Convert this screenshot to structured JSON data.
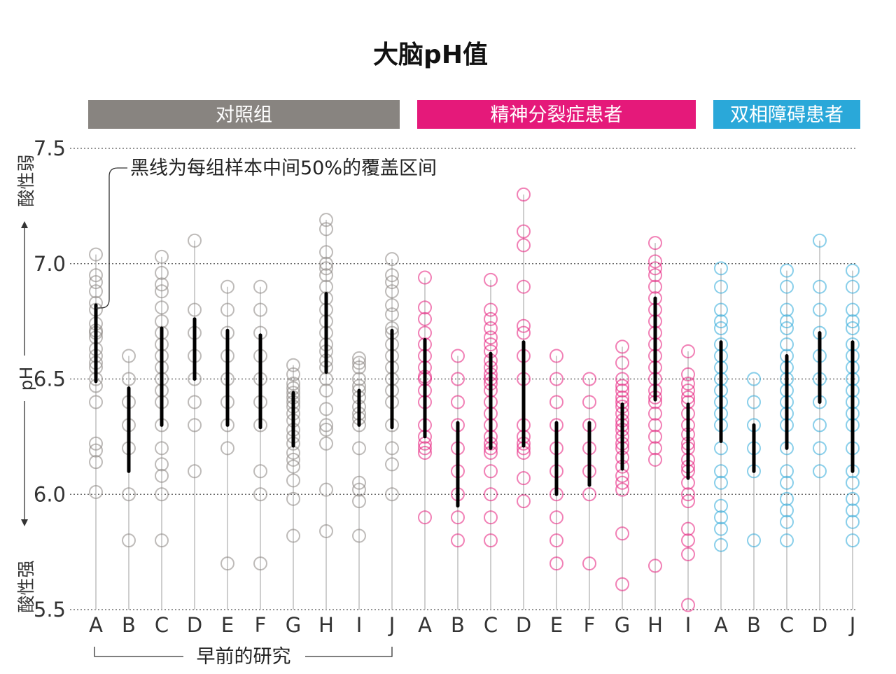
{
  "chart_data": {
    "type": "scatter",
    "title": "大脑pH值",
    "ylabel": "pH",
    "ylim": [
      5.5,
      7.5
    ],
    "y_ticks": [
      "7.5",
      "7.0",
      "6.5",
      "6.0",
      "5.5"
    ],
    "y_direction_labels": {
      "up": "酸性弱",
      "down": "酸性强"
    },
    "grid": true,
    "annotation": "黑线为每组样本中间50%的覆盖区间",
    "bracket_label": "早前的研究",
    "groups": [
      {
        "name": "对照组",
        "color": "#888480",
        "categories": [
          {
            "label": "A",
            "iqr": [
              6.49,
              6.82
            ],
            "points": [
              7.04,
              6.95,
              6.92,
              6.88,
              6.83,
              6.8,
              6.74,
              6.71,
              6.7,
              6.68,
              6.63,
              6.6,
              6.57,
              6.55,
              6.5,
              6.47,
              6.4,
              6.22,
              6.19,
              6.14,
              6.01
            ]
          },
          {
            "label": "B",
            "iqr": [
              6.1,
              6.46
            ],
            "points": [
              6.6,
              6.5,
              6.4,
              6.3,
              6.2,
              6.0,
              5.8
            ]
          },
          {
            "label": "C",
            "iqr": [
              6.3,
              6.72
            ],
            "points": [
              7.03,
              6.96,
              6.91,
              6.88,
              6.81,
              6.75,
              6.7,
              6.65,
              6.6,
              6.55,
              6.5,
              6.45,
              6.4,
              6.3,
              6.2,
              6.13,
              6.08,
              6.0,
              5.8
            ]
          },
          {
            "label": "D",
            "iqr": [
              6.5,
              6.76
            ],
            "points": [
              7.1,
              6.8,
              6.7,
              6.6,
              6.5,
              6.4,
              6.3,
              6.1
            ]
          },
          {
            "label": "E",
            "iqr": [
              6.3,
              6.71
            ],
            "points": [
              6.9,
              6.8,
              6.7,
              6.6,
              6.5,
              6.4,
              6.3,
              6.2,
              5.7
            ]
          },
          {
            "label": "F",
            "iqr": [
              6.29,
              6.69
            ],
            "points": [
              6.9,
              6.8,
              6.7,
              6.6,
              6.5,
              6.4,
              6.3,
              6.1,
              6.0,
              5.7
            ]
          },
          {
            "label": "G",
            "iqr": [
              6.21,
              6.44
            ],
            "points": [
              6.56,
              6.52,
              6.48,
              6.46,
              6.44,
              6.42,
              6.4,
              6.38,
              6.35,
              6.32,
              6.28,
              6.25,
              6.22,
              6.18,
              6.15,
              6.12,
              6.06,
              5.98,
              5.82
            ]
          },
          {
            "label": "H",
            "iqr": [
              6.53,
              6.87
            ],
            "points": [
              7.19,
              7.15,
              7.05,
              7.0,
              6.98,
              6.95,
              6.9,
              6.85,
              6.8,
              6.75,
              6.7,
              6.65,
              6.62,
              6.58,
              6.55,
              6.5,
              6.45,
              6.37,
              6.3,
              6.28,
              6.22,
              6.02,
              5.84
            ]
          },
          {
            "label": "I",
            "iqr": [
              6.3,
              6.45
            ],
            "points": [
              6.59,
              6.57,
              6.55,
              6.5,
              6.47,
              6.45,
              6.42,
              6.38,
              6.35,
              6.33,
              6.3,
              6.2,
              6.05,
              6.02,
              5.97,
              5.82
            ]
          },
          {
            "label": "J",
            "iqr": [
              6.29,
              6.71
            ],
            "points": [
              7.02,
              6.95,
              6.92,
              6.88,
              6.82,
              6.78,
              6.72,
              6.7,
              6.65,
              6.6,
              6.55,
              6.5,
              6.45,
              6.4,
              6.3,
              6.2,
              6.13,
              6.0
            ]
          }
        ]
      },
      {
        "name": "精神分裂症患者",
        "color": "#e5197a",
        "categories": [
          {
            "label": "A",
            "iqr": [
              6.25,
              6.67
            ],
            "points": [
              6.94,
              6.81,
              6.76,
              6.7,
              6.65,
              6.6,
              6.55,
              6.51,
              6.5,
              6.45,
              6.4,
              6.3,
              6.25,
              6.22,
              6.2,
              6.18,
              5.9
            ]
          },
          {
            "label": "B",
            "iqr": [
              5.95,
              6.31
            ],
            "points": [
              6.6,
              6.5,
              6.4,
              6.3,
              6.2,
              6.1,
              6.0,
              5.9,
              5.8
            ]
          },
          {
            "label": "C",
            "iqr": [
              6.2,
              6.61
            ],
            "points": [
              6.93,
              6.8,
              6.76,
              6.72,
              6.68,
              6.65,
              6.62,
              6.58,
              6.55,
              6.52,
              6.5,
              6.48,
              6.45,
              6.4,
              6.35,
              6.3,
              6.25,
              6.22,
              6.2,
              6.18,
              6.1,
              6.0,
              5.9,
              5.8
            ]
          },
          {
            "label": "D",
            "iqr": [
              6.21,
              6.66
            ],
            "points": [
              7.3,
              7.14,
              7.08,
              6.9,
              6.73,
              6.7,
              6.6,
              6.5,
              6.3,
              6.25,
              6.22,
              6.2,
              6.18,
              6.07,
              5.97
            ]
          },
          {
            "label": "E",
            "iqr": [
              6.0,
              6.31
            ],
            "points": [
              6.6,
              6.5,
              6.4,
              6.3,
              6.2,
              6.1,
              6.0,
              5.9,
              5.8,
              5.7
            ]
          },
          {
            "label": "F",
            "iqr": [
              6.04,
              6.31
            ],
            "points": [
              6.5,
              6.4,
              6.3,
              6.2,
              6.1,
              6.0,
              5.7
            ]
          },
          {
            "label": "G",
            "iqr": [
              6.11,
              6.39
            ],
            "points": [
              6.64,
              6.57,
              6.5,
              6.47,
              6.45,
              6.42,
              6.4,
              6.38,
              6.35,
              6.32,
              6.3,
              6.28,
              6.25,
              6.22,
              6.2,
              6.16,
              6.12,
              6.08,
              6.05,
              6.02,
              5.83,
              5.61
            ]
          },
          {
            "label": "H",
            "iqr": [
              6.41,
              6.85
            ],
            "points": [
              7.09,
              7.01,
              6.98,
              6.95,
              6.9,
              6.85,
              6.8,
              6.75,
              6.7,
              6.65,
              6.6,
              6.55,
              6.5,
              6.45,
              6.42,
              6.4,
              6.35,
              6.3,
              6.25,
              6.2,
              6.15,
              5.69
            ]
          },
          {
            "label": "I",
            "iqr": [
              6.07,
              6.39
            ],
            "points": [
              6.62,
              6.52,
              6.48,
              6.45,
              6.42,
              6.4,
              6.35,
              6.3,
              6.26,
              6.22,
              6.2,
              6.15,
              6.12,
              6.1,
              6.05,
              6.0,
              5.97,
              5.85,
              5.8,
              5.74,
              5.52
            ]
          }
        ]
      },
      {
        "name": "双相障碍患者",
        "color": "#2aa8d9",
        "categories": [
          {
            "label": "A",
            "iqr": [
              6.23,
              6.66
            ],
            "points": [
              6.98,
              6.9,
              6.8,
              6.75,
              6.72,
              6.65,
              6.6,
              6.55,
              6.5,
              6.45,
              6.4,
              6.35,
              6.3,
              6.2,
              6.1,
              6.05,
              5.95,
              5.9,
              5.85,
              5.78
            ]
          },
          {
            "label": "B",
            "iqr": [
              6.1,
              6.3
            ],
            "points": [
              6.5,
              6.4,
              6.3,
              6.2,
              6.1,
              5.8
            ]
          },
          {
            "label": "C",
            "iqr": [
              6.2,
              6.6
            ],
            "points": [
              6.97,
              6.9,
              6.8,
              6.75,
              6.72,
              6.65,
              6.6,
              6.55,
              6.5,
              6.45,
              6.4,
              6.35,
              6.3,
              6.2,
              6.1,
              6.05,
              5.98,
              5.93,
              5.88,
              5.8
            ]
          },
          {
            "label": "D",
            "iqr": [
              6.4,
              6.7
            ],
            "points": [
              7.1,
              6.9,
              6.8,
              6.7,
              6.6,
              6.5,
              6.4,
              6.3,
              6.2,
              6.1
            ]
          },
          {
            "label": "J",
            "iqr": [
              6.1,
              6.66
            ],
            "points": [
              6.97,
              6.9,
              6.8,
              6.75,
              6.72,
              6.65,
              6.6,
              6.55,
              6.5,
              6.45,
              6.4,
              6.35,
              6.3,
              6.2,
              6.1,
              6.05,
              5.98,
              5.93,
              5.88,
              5.8
            ]
          }
        ]
      }
    ]
  }
}
